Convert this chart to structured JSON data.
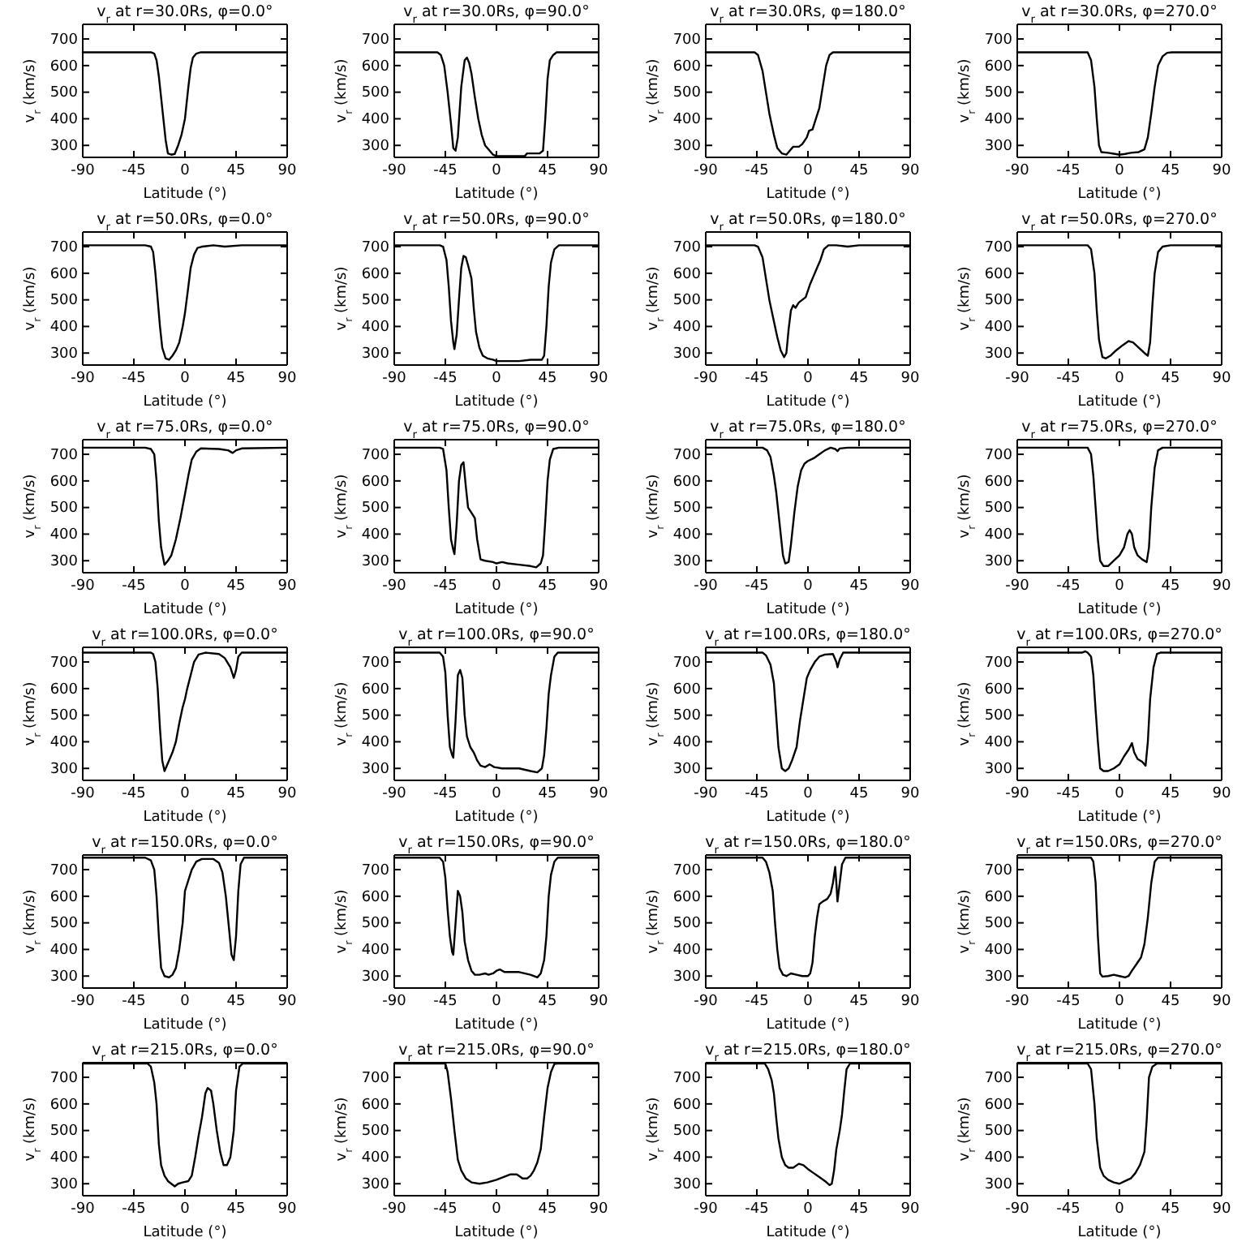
{
  "chart_data": [
    {
      "type": "line",
      "title": "v$_{r}$ at r=30.0Rs, φ=0.0°",
      "xlabel": "Latitude (°)",
      "ylabel": "v$_{r}$ (km/s)",
      "xlim": [
        -90,
        90
      ],
      "ylim": [
        255,
        755
      ],
      "xticks": [
        -90,
        -45,
        0,
        45,
        90
      ],
      "yticks": [
        300,
        400,
        500,
        600,
        700
      ],
      "color": "#000000",
      "x": [
        -90,
        -30,
        -27,
        -25,
        -23,
        -21,
        -19,
        -17,
        -15,
        -12,
        -9,
        -6,
        -3,
        0,
        3,
        5,
        7,
        10,
        14,
        20,
        90
      ],
      "values": [
        650,
        650,
        645,
        620,
        560,
        480,
        400,
        320,
        270,
        265,
        268,
        300,
        340,
        400,
        520,
        590,
        630,
        645,
        650,
        650,
        650
      ]
    },
    {
      "type": "line",
      "title": "v$_{r}$ at r=30.0Rs, φ=90.0°",
      "xlabel": "Latitude (°)",
      "ylabel": "v$_{r}$ (km/s)",
      "xlim": [
        -90,
        90
      ],
      "ylim": [
        255,
        755
      ],
      "xticks": [
        -90,
        -45,
        0,
        45,
        90
      ],
      "yticks": [
        300,
        400,
        500,
        600,
        700
      ],
      "color": "#000000",
      "x": [
        -90,
        -52,
        -49,
        -46,
        -43,
        -40,
        -38,
        -36,
        -34,
        -31,
        -28,
        -26,
        -24,
        -22,
        -19,
        -16,
        -13,
        -10,
        -6,
        -3,
        0,
        25,
        27,
        38,
        41,
        43,
        45,
        47,
        50,
        53,
        90
      ],
      "values": [
        650,
        650,
        640,
        600,
        500,
        380,
        290,
        280,
        330,
        520,
        620,
        630,
        610,
        570,
        480,
        400,
        340,
        300,
        280,
        265,
        260,
        260,
        270,
        270,
        280,
        400,
        550,
        620,
        640,
        650,
        650
      ]
    },
    {
      "type": "line",
      "title": "v$_{r}$ at r=30.0Rs, φ=180.0°",
      "xlabel": "Latitude (°)",
      "ylabel": "v$_{r}$ (km/s)",
      "xlim": [
        -90,
        90
      ],
      "ylim": [
        255,
        755
      ],
      "xticks": [
        -90,
        -45,
        0,
        45,
        90
      ],
      "yticks": [
        300,
        400,
        500,
        600,
        700
      ],
      "color": "#000000",
      "x": [
        -90,
        -47,
        -44,
        -40,
        -37,
        -34,
        -30,
        -27,
        -23,
        -19,
        -16,
        -13,
        -8,
        -5,
        -1,
        1,
        4,
        7,
        10,
        13,
        16,
        19,
        22,
        90
      ],
      "values": [
        650,
        650,
        640,
        580,
        500,
        420,
        340,
        290,
        270,
        265,
        280,
        295,
        295,
        305,
        330,
        355,
        360,
        400,
        440,
        520,
        600,
        640,
        650,
        650
      ]
    },
    {
      "type": "line",
      "title": "v$_{r}$ at r=30.0Rs, φ=270.0°",
      "xlabel": "Latitude (°)",
      "ylabel": "v$_{r}$ (km/s)",
      "xlim": [
        -90,
        90
      ],
      "ylim": [
        255,
        755
      ],
      "xticks": [
        -90,
        -45,
        0,
        45,
        90
      ],
      "yticks": [
        300,
        400,
        500,
        600,
        700
      ],
      "color": "#000000",
      "x": [
        -90,
        -28,
        -25,
        -22,
        -20,
        -18,
        -16,
        -10,
        -4,
        0,
        5,
        10,
        17,
        22,
        25,
        28,
        31,
        34,
        38,
        42,
        46,
        90
      ],
      "values": [
        650,
        650,
        620,
        520,
        400,
        300,
        275,
        272,
        268,
        265,
        268,
        272,
        275,
        285,
        330,
        420,
        520,
        600,
        635,
        648,
        650,
        650
      ]
    },
    {
      "type": "line",
      "title": "v$_{r}$ at r=50.0Rs, φ=0.0°",
      "xlabel": "Latitude (°)",
      "ylabel": "v$_{r}$ (km/s)",
      "xlim": [
        -90,
        90
      ],
      "ylim": [
        255,
        755
      ],
      "xticks": [
        -90,
        -45,
        0,
        45,
        90
      ],
      "yticks": [
        300,
        400,
        500,
        600,
        700
      ],
      "color": "#000000",
      "x": [
        -90,
        -35,
        -30,
        -28,
        -26,
        -24,
        -22,
        -20,
        -17,
        -14,
        -11,
        -8,
        -5,
        -2,
        0,
        3,
        5,
        8,
        11,
        15,
        25,
        35,
        50,
        90
      ],
      "values": [
        705,
        705,
        700,
        680,
        600,
        500,
        400,
        320,
        280,
        275,
        290,
        310,
        340,
        400,
        450,
        550,
        620,
        670,
        695,
        700,
        705,
        700,
        705,
        705
      ]
    },
    {
      "type": "line",
      "title": "v$_{r}$ at r=50.0Rs, φ=90.0°",
      "xlabel": "Latitude (°)",
      "ylabel": "v$_{r}$ (km/s)",
      "xlim": [
        -90,
        90
      ],
      "ylim": [
        255,
        755
      ],
      "xticks": [
        -90,
        -45,
        0,
        45,
        90
      ],
      "yticks": [
        300,
        400,
        500,
        600,
        700
      ],
      "color": "#000000",
      "x": [
        -90,
        -50,
        -47,
        -44,
        -42,
        -40,
        -38,
        -37,
        -35,
        -33,
        -31,
        -29,
        -27,
        -25,
        -22,
        -20,
        -18,
        -15,
        -12,
        -8,
        -3,
        0,
        20,
        30,
        40,
        42,
        44,
        46,
        48,
        51,
        55,
        90
      ],
      "values": [
        705,
        705,
        700,
        650,
        550,
        420,
        340,
        315,
        370,
        500,
        620,
        665,
        660,
        630,
        580,
        470,
        380,
        320,
        290,
        280,
        275,
        270,
        270,
        275,
        275,
        290,
        400,
        550,
        640,
        690,
        705,
        705
      ]
    },
    {
      "type": "line",
      "title": "v$_{r}$ at r=50.0Rs, φ=180.0°",
      "xlabel": "Latitude (°)",
      "ylabel": "v$_{r}$ (km/s)",
      "xlim": [
        -90,
        90
      ],
      "ylim": [
        255,
        755
      ],
      "xticks": [
        -90,
        -45,
        0,
        45,
        90
      ],
      "yticks": [
        300,
        400,
        500,
        600,
        700
      ],
      "color": "#000000",
      "x": [
        -90,
        -47,
        -44,
        -40,
        -37,
        -34,
        -30,
        -27,
        -24,
        -21,
        -19,
        -17,
        -15,
        -13,
        -11,
        -8,
        -5,
        -2,
        2,
        5,
        8,
        11,
        14,
        18,
        25,
        35,
        45,
        90
      ],
      "values": [
        705,
        705,
        700,
        660,
        580,
        500,
        420,
        360,
        310,
        285,
        300,
        390,
        460,
        480,
        470,
        490,
        500,
        510,
        560,
        590,
        620,
        650,
        690,
        705,
        705,
        700,
        705,
        705
      ]
    },
    {
      "type": "line",
      "title": "v$_{r}$ at r=50.0Rs, φ=270.0°",
      "xlabel": "Latitude (°)",
      "ylabel": "v$_{r}$ (km/s)",
      "xlim": [
        -90,
        90
      ],
      "ylim": [
        255,
        755
      ],
      "xticks": [
        -90,
        -45,
        0,
        45,
        90
      ],
      "yticks": [
        300,
        400,
        500,
        600,
        700
      ],
      "color": "#000000",
      "x": [
        -90,
        -28,
        -25,
        -22,
        -20,
        -18,
        -15,
        -12,
        -8,
        -3,
        3,
        8,
        12,
        17,
        22,
        25,
        27,
        29,
        31,
        34,
        38,
        45,
        90
      ],
      "values": [
        705,
        705,
        690,
        600,
        460,
        350,
        285,
        280,
        290,
        310,
        330,
        345,
        340,
        320,
        300,
        290,
        340,
        480,
        600,
        680,
        700,
        705,
        705
      ]
    },
    {
      "type": "line",
      "title": "v$_{r}$ at r=75.0Rs, φ=0.0°",
      "xlabel": "Latitude (°)",
      "ylabel": "v$_{r}$ (km/s)",
      "xlim": [
        -90,
        90
      ],
      "ylim": [
        255,
        755
      ],
      "xticks": [
        -90,
        -45,
        0,
        45,
        90
      ],
      "yticks": [
        300,
        400,
        500,
        600,
        700
      ],
      "color": "#000000",
      "x": [
        -90,
        -35,
        -30,
        -27,
        -25,
        -23,
        -21,
        -18,
        -15,
        -12,
        -8,
        -4,
        0,
        3,
        6,
        10,
        14,
        30,
        38,
        42,
        45,
        50,
        90
      ],
      "values": [
        725,
        725,
        720,
        700,
        600,
        450,
        350,
        285,
        300,
        320,
        380,
        460,
        550,
        620,
        680,
        710,
        722,
        720,
        715,
        705,
        715,
        722,
        725
      ]
    },
    {
      "type": "line",
      "title": "v$_{r}$ at r=75.0Rs, φ=90.0°",
      "xlabel": "Latitude (°)",
      "ylabel": "v$_{r}$ (km/s)",
      "xlim": [
        -90,
        90
      ],
      "ylim": [
        255,
        755
      ],
      "xticks": [
        -90,
        -45,
        0,
        45,
        90
      ],
      "yticks": [
        300,
        400,
        500,
        600,
        700
      ],
      "color": "#000000",
      "x": [
        -90,
        -50,
        -47,
        -44,
        -42,
        -40,
        -38,
        -37,
        -35,
        -33,
        -31,
        -29,
        -27,
        -25,
        -22,
        -19,
        -17,
        -14,
        -10,
        -3,
        0,
        5,
        10,
        20,
        30,
        35,
        39,
        41,
        43,
        45,
        47,
        50,
        55,
        90
      ],
      "values": [
        725,
        725,
        720,
        640,
        500,
        380,
        340,
        325,
        440,
        600,
        660,
        670,
        580,
        500,
        480,
        460,
        380,
        305,
        300,
        295,
        290,
        295,
        290,
        285,
        280,
        275,
        290,
        320,
        450,
        600,
        680,
        720,
        725,
        725
      ]
    },
    {
      "type": "line",
      "title": "v$_{r}$ at r=75.0Rs, φ=180.0°",
      "xlabel": "Latitude (°)",
      "ylabel": "v$_{r}$ (km/s)",
      "xlim": [
        -90,
        90
      ],
      "ylim": [
        255,
        755
      ],
      "xticks": [
        -90,
        -45,
        0,
        45,
        90
      ],
      "yticks": [
        300,
        400,
        500,
        600,
        700
      ],
      "color": "#000000",
      "x": [
        -90,
        -40,
        -36,
        -33,
        -30,
        -28,
        -26,
        -24,
        -22,
        -20,
        -17,
        -15,
        -12,
        -9,
        -6,
        -3,
        0,
        5,
        10,
        15,
        20,
        24,
        26,
        28,
        35,
        90
      ],
      "values": [
        725,
        725,
        715,
        690,
        620,
        560,
        480,
        400,
        320,
        290,
        295,
        360,
        480,
        580,
        640,
        665,
        675,
        685,
        700,
        715,
        725,
        720,
        712,
        722,
        725,
        725
      ]
    },
    {
      "type": "line",
      "title": "v$_{r}$ at r=75.0Rs, φ=270.0°",
      "xlabel": "Latitude (°)",
      "ylabel": "v$_{r}$ (km/s)",
      "xlim": [
        -90,
        90
      ],
      "ylim": [
        255,
        755
      ],
      "xticks": [
        -90,
        -45,
        0,
        45,
        90
      ],
      "yticks": [
        300,
        400,
        500,
        600,
        700
      ],
      "color": "#000000",
      "x": [
        -90,
        -28,
        -25,
        -23,
        -21,
        -19,
        -17,
        -14,
        -10,
        -5,
        0,
        4,
        7,
        9,
        11,
        13,
        16,
        20,
        24,
        26,
        28,
        31,
        34,
        38,
        90
      ],
      "values": [
        725,
        725,
        700,
        620,
        500,
        380,
        300,
        280,
        280,
        300,
        320,
        350,
        400,
        415,
        400,
        350,
        320,
        305,
        295,
        350,
        500,
        650,
        715,
        725,
        725
      ]
    },
    {
      "type": "line",
      "title": "v$_{r}$ at r=100.0Rs, φ=0.0°",
      "xlabel": "Latitude (°)",
      "ylabel": "v$_{r}$ (km/s)",
      "xlim": [
        -90,
        90
      ],
      "ylim": [
        255,
        755
      ],
      "xticks": [
        -90,
        -45,
        0,
        45,
        90
      ],
      "yticks": [
        300,
        400,
        500,
        600,
        700
      ],
      "color": "#000000",
      "x": [
        -90,
        -30,
        -28,
        -26,
        -24,
        -22,
        -20,
        -18,
        -15,
        -11,
        -8,
        -5,
        -2,
        0,
        2,
        5,
        8,
        12,
        18,
        30,
        35,
        40,
        43,
        45,
        47,
        50,
        90
      ],
      "values": [
        735,
        735,
        730,
        700,
        600,
        450,
        330,
        290,
        320,
        360,
        400,
        470,
        530,
        560,
        600,
        650,
        700,
        728,
        735,
        730,
        715,
        680,
        640,
        670,
        720,
        735,
        735
      ]
    },
    {
      "type": "line",
      "title": "v$_{r}$ at r=100.0Rs, φ=90.0°",
      "xlabel": "Latitude (°)",
      "ylabel": "v$_{r}$ (km/s)",
      "xlim": [
        -90,
        90
      ],
      "ylim": [
        255,
        755
      ],
      "xticks": [
        -90,
        -45,
        0,
        45,
        90
      ],
      "yticks": [
        300,
        400,
        500,
        600,
        700
      ],
      "color": "#000000",
      "x": [
        -90,
        -50,
        -47,
        -45,
        -43,
        -41,
        -39,
        -38,
        -36,
        -34,
        -32,
        -30,
        -28,
        -26,
        -23,
        -20,
        -17,
        -14,
        -10,
        -6,
        -2,
        5,
        20,
        30,
        36,
        40,
        42,
        44,
        46,
        48,
        51,
        54,
        90
      ],
      "values": [
        735,
        735,
        720,
        660,
        500,
        380,
        350,
        340,
        480,
        650,
        670,
        640,
        500,
        420,
        380,
        360,
        330,
        310,
        305,
        315,
        305,
        300,
        300,
        290,
        285,
        300,
        350,
        450,
        580,
        650,
        720,
        735,
        735
      ]
    },
    {
      "type": "line",
      "title": "v$_{r}$ at r=100.0Rs, φ=180.0°",
      "xlabel": "Latitude (°)",
      "ylabel": "v$_{r}$ (km/s)",
      "xlim": [
        -90,
        90
      ],
      "ylim": [
        255,
        755
      ],
      "xticks": [
        -90,
        -45,
        0,
        45,
        90
      ],
      "yticks": [
        300,
        400,
        500,
        600,
        700
      ],
      "color": "#000000",
      "x": [
        -90,
        -40,
        -37,
        -33,
        -30,
        -28,
        -26,
        -23,
        -20,
        -17,
        -14,
        -10,
        -7,
        -4,
        -1,
        2,
        6,
        10,
        15,
        22,
        25,
        26,
        28,
        31,
        90
      ],
      "values": [
        735,
        735,
        725,
        690,
        620,
        500,
        380,
        300,
        290,
        300,
        330,
        380,
        480,
        560,
        640,
        670,
        700,
        720,
        728,
        730,
        700,
        680,
        710,
        735,
        735
      ]
    },
    {
      "type": "line",
      "title": "v$_{r}$ at r=100.0Rs, φ=270.0°",
      "xlabel": "Latitude (°)",
      "ylabel": "v$_{r}$ (km/s)",
      "xlim": [
        -90,
        90
      ],
      "ylim": [
        255,
        755
      ],
      "xticks": [
        -90,
        -45,
        0,
        45,
        90
      ],
      "yticks": [
        300,
        400,
        500,
        600,
        700
      ],
      "color": "#000000",
      "x": [
        -90,
        -33,
        -30,
        -28,
        -25,
        -23,
        -21,
        -19,
        -17,
        -14,
        -10,
        -5,
        0,
        4,
        8,
        11,
        13,
        16,
        20,
        23,
        25,
        27,
        30,
        33,
        36,
        90
      ],
      "values": [
        735,
        735,
        740,
        735,
        720,
        650,
        520,
        400,
        300,
        290,
        290,
        300,
        315,
        345,
        370,
        395,
        360,
        335,
        325,
        310,
        400,
        560,
        680,
        730,
        735,
        735
      ]
    },
    {
      "type": "line",
      "title": "v$_{r}$ at r=150.0Rs, φ=0.0°",
      "xlabel": "Latitude (°)",
      "ylabel": "v$_{r}$ (km/s)",
      "xlim": [
        -90,
        90
      ],
      "ylim": [
        255,
        755
      ],
      "xticks": [
        -90,
        -45,
        0,
        45,
        90
      ],
      "yticks": [
        300,
        400,
        500,
        600,
        700
      ],
      "color": "#000000",
      "x": [
        -90,
        -35,
        -30,
        -27,
        -25,
        -23,
        -21,
        -18,
        -14,
        -11,
        -8,
        -5,
        -2,
        0,
        3,
        6,
        10,
        15,
        25,
        30,
        33,
        36,
        39,
        41,
        43,
        45,
        47,
        49,
        52,
        90
      ],
      "values": [
        745,
        745,
        735,
        700,
        600,
        450,
        330,
        300,
        295,
        305,
        330,
        400,
        500,
        620,
        660,
        700,
        730,
        740,
        740,
        725,
        690,
        600,
        470,
        380,
        360,
        450,
        620,
        720,
        745,
        745
      ]
    },
    {
      "type": "line",
      "title": "v$_{r}$ at r=150.0Rs, φ=90.0°",
      "xlabel": "Latitude (°)",
      "ylabel": "v$_{r}$ (km/s)",
      "xlim": [
        -90,
        90
      ],
      "ylim": [
        255,
        755
      ],
      "xticks": [
        -90,
        -45,
        0,
        45,
        90
      ],
      "yticks": [
        300,
        400,
        500,
        600,
        700
      ],
      "color": "#000000",
      "x": [
        -90,
        -50,
        -47,
        -45,
        -43,
        -41,
        -39,
        -38,
        -36,
        -34,
        -32,
        -30,
        -28,
        -25,
        -22,
        -19,
        -15,
        -10,
        -7,
        -3,
        0,
        3,
        7,
        20,
        30,
        36,
        39,
        42,
        44,
        46,
        48,
        51,
        54,
        90
      ],
      "values": [
        745,
        745,
        730,
        670,
        550,
        450,
        390,
        380,
        500,
        620,
        600,
        540,
        430,
        360,
        320,
        305,
        305,
        310,
        305,
        310,
        320,
        325,
        315,
        315,
        305,
        295,
        310,
        360,
        450,
        600,
        680,
        730,
        745,
        745
      ]
    },
    {
      "type": "line",
      "title": "v$_{r}$ at r=150.0Rs, φ=180.0°",
      "xlabel": "Latitude (°)",
      "ylabel": "v$_{r}$ (km/s)",
      "xlim": [
        -90,
        90
      ],
      "ylim": [
        255,
        755
      ],
      "xticks": [
        -90,
        -45,
        0,
        45,
        90
      ],
      "yticks": [
        300,
        400,
        500,
        600,
        700
      ],
      "color": "#000000",
      "x": [
        -90,
        -40,
        -37,
        -34,
        -31,
        -29,
        -27,
        -25,
        -22,
        -19,
        -15,
        -10,
        -5,
        0,
        2,
        4,
        6,
        8,
        10,
        13,
        17,
        20,
        22,
        24,
        25,
        26,
        28,
        30,
        33,
        90
      ],
      "values": [
        745,
        745,
        730,
        690,
        620,
        500,
        400,
        330,
        305,
        300,
        310,
        305,
        300,
        300,
        310,
        350,
        450,
        520,
        570,
        580,
        590,
        610,
        650,
        710,
        650,
        580,
        650,
        720,
        745,
        745
      ]
    },
    {
      "type": "line",
      "title": "v$_{r}$ at r=150.0Rs, φ=270.0°",
      "xlabel": "Latitude (°)",
      "ylabel": "v$_{r}$ (km/s)",
      "xlim": [
        -90,
        90
      ],
      "ylim": [
        255,
        755
      ],
      "xticks": [
        -90,
        -45,
        0,
        45,
        90
      ],
      "yticks": [
        300,
        400,
        500,
        600,
        700
      ],
      "color": "#000000",
      "x": [
        -90,
        -25,
        -23,
        -21,
        -19,
        -17,
        -15,
        -10,
        -5,
        0,
        5,
        8,
        11,
        15,
        19,
        22,
        25,
        28,
        31,
        34,
        90
      ],
      "values": [
        745,
        745,
        730,
        650,
        450,
        310,
        298,
        300,
        305,
        300,
        295,
        300,
        320,
        345,
        370,
        420,
        520,
        650,
        730,
        745,
        745
      ]
    },
    {
      "type": "line",
      "title": "v$_{r}$ at r=215.0Rs, φ=0.0°",
      "xlabel": "Latitude (°)",
      "ylabel": "v$_{r}$ (km/s)",
      "xlim": [
        -90,
        90
      ],
      "ylim": [
        255,
        755
      ],
      "xticks": [
        -90,
        -45,
        0,
        45,
        90
      ],
      "yticks": [
        300,
        400,
        500,
        600,
        700
      ],
      "color": "#000000",
      "x": [
        -90,
        -33,
        -30,
        -27,
        -25,
        -23,
        -21,
        -18,
        -15,
        -12,
        -9,
        -6,
        -2,
        3,
        6,
        9,
        12,
        15,
        18,
        20,
        23,
        25,
        28,
        31,
        34,
        37,
        40,
        43,
        45,
        48,
        51,
        90
      ],
      "values": [
        752,
        752,
        740,
        680,
        600,
        450,
        370,
        330,
        310,
        300,
        290,
        300,
        305,
        310,
        330,
        400,
        480,
        550,
        640,
        660,
        650,
        600,
        500,
        420,
        370,
        370,
        400,
        500,
        650,
        740,
        752,
        752
      ]
    },
    {
      "type": "line",
      "title": "v$_{r}$ at r=215.0Rs, φ=90.0°",
      "xlabel": "Latitude (°)",
      "ylabel": "v$_{r}$ (km/s)",
      "xlim": [
        -90,
        90
      ],
      "ylim": [
        255,
        755
      ],
      "xticks": [
        -90,
        -45,
        0,
        45,
        90
      ],
      "yticks": [
        300,
        400,
        500,
        600,
        700
      ],
      "color": "#000000",
      "x": [
        -90,
        -45,
        -43,
        -40,
        -37,
        -34,
        -31,
        -27,
        -22,
        -15,
        -8,
        0,
        6,
        12,
        18,
        23,
        27,
        30,
        33,
        36,
        39,
        42,
        45,
        48,
        51,
        54,
        90
      ],
      "values": [
        752,
        752,
        720,
        620,
        500,
        390,
        350,
        320,
        305,
        300,
        305,
        315,
        325,
        335,
        335,
        320,
        320,
        330,
        350,
        380,
        430,
        550,
        660,
        720,
        750,
        752,
        752
      ]
    },
    {
      "type": "line",
      "title": "v$_{r}$ at r=215.0Rs, φ=180.0°",
      "xlabel": "Latitude (°)",
      "ylabel": "v$_{r}$ (km/s)",
      "xlim": [
        -90,
        90
      ],
      "ylim": [
        255,
        755
      ],
      "xticks": [
        -90,
        -45,
        0,
        45,
        90
      ],
      "yticks": [
        300,
        400,
        500,
        600,
        700
      ],
      "color": "#000000",
      "x": [
        -90,
        -38,
        -35,
        -32,
        -30,
        -28,
        -26,
        -23,
        -20,
        -17,
        -13,
        -8,
        -4,
        0,
        5,
        10,
        15,
        19,
        21,
        23,
        25,
        28,
        30,
        32,
        34,
        37,
        90
      ],
      "values": [
        752,
        752,
        730,
        690,
        640,
        550,
        470,
        400,
        370,
        360,
        360,
        375,
        370,
        355,
        340,
        325,
        310,
        295,
        300,
        350,
        430,
        500,
        560,
        650,
        730,
        752,
        752
      ]
    },
    {
      "type": "line",
      "title": "v$_{r}$ at r=215.0Rs, φ=270.0°",
      "xlabel": "Latitude (°)",
      "ylabel": "v$_{r}$ (km/s)",
      "xlim": [
        -90,
        90
      ],
      "ylim": [
        255,
        755
      ],
      "xticks": [
        -90,
        -45,
        0,
        45,
        90
      ],
      "yticks": [
        300,
        400,
        500,
        600,
        700
      ],
      "color": "#000000",
      "x": [
        -90,
        -28,
        -25,
        -22,
        -20,
        -17,
        -14,
        -10,
        -5,
        0,
        5,
        10,
        14,
        18,
        22,
        24,
        26,
        29,
        33,
        90
      ],
      "values": [
        752,
        752,
        730,
        600,
        470,
        360,
        330,
        315,
        305,
        300,
        310,
        320,
        340,
        370,
        420,
        540,
        700,
        740,
        752,
        752
      ]
    }
  ]
}
